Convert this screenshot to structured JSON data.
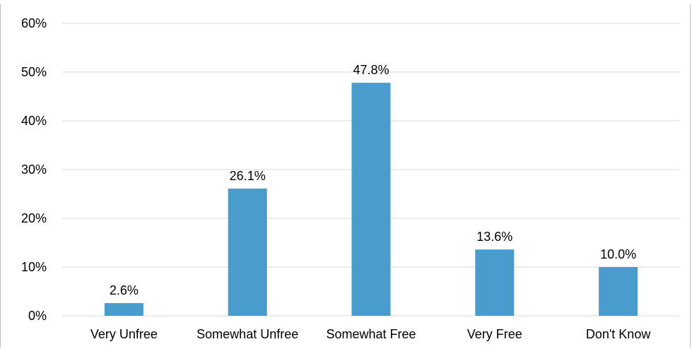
{
  "chart_data": {
    "type": "bar",
    "categories": [
      "Very Unfree",
      "Somewhat Unfree",
      "Somewhat Free",
      "Very Free",
      "Don't Know"
    ],
    "values": [
      2.6,
      26.1,
      47.8,
      13.6,
      10.0
    ],
    "data_labels": [
      "2.6%",
      "26.1%",
      "47.8%",
      "13.6%",
      "10.0%"
    ],
    "y_ticks": [
      "0%",
      "10%",
      "20%",
      "30%",
      "40%",
      "50%",
      "60%"
    ],
    "ylim": [
      0,
      60
    ],
    "grid": true,
    "bar_color": "#4a9ccc",
    "grid_color": "#d9d9d9"
  }
}
